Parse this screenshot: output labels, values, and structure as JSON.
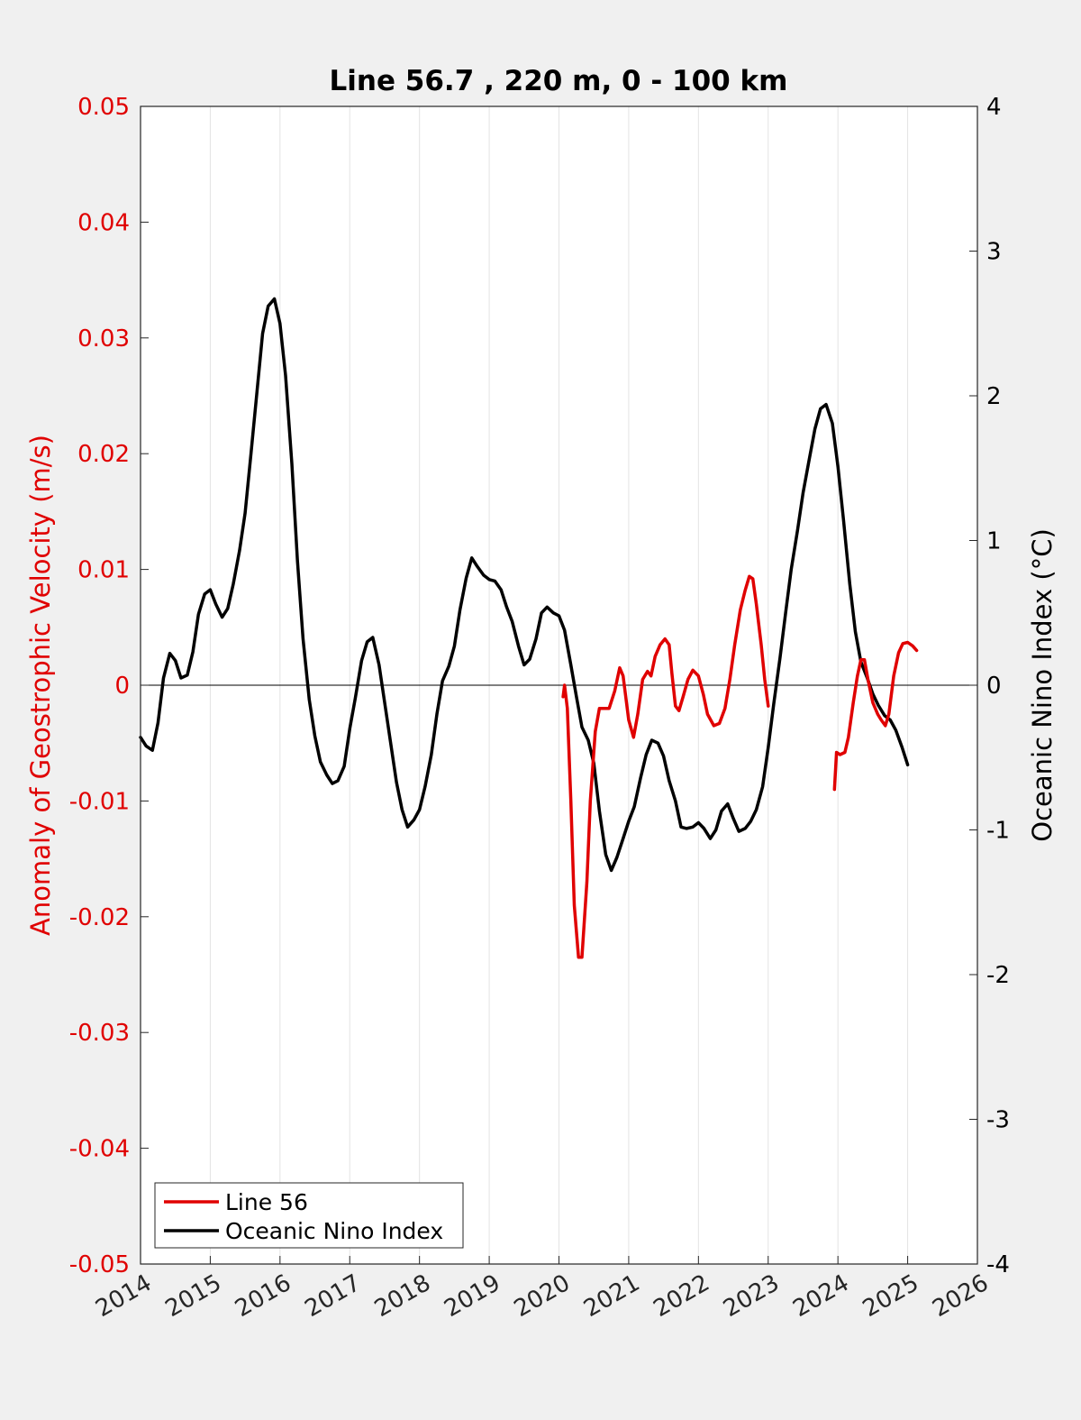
{
  "chart_data": {
    "type": "line",
    "title": "Line 56.7 , 220 m, 0 - 100 km",
    "xlabel": "",
    "ylabel": "Anomaly of Geostrophic Velocity (m/s)",
    "y2label": "Oceanic Nino Index (°C)",
    "xlim": [
      2014,
      2026
    ],
    "ylim": [
      -0.05,
      0.05
    ],
    "y2lim": [
      -4,
      4
    ],
    "x_ticks": [
      "2014",
      "2015",
      "2016",
      "2017",
      "2018",
      "2019",
      "2020",
      "2021",
      "2022",
      "2023",
      "2024",
      "2025",
      "2026"
    ],
    "y_ticks": [
      "0.05",
      "0.04",
      "0.03",
      "0.02",
      "0.01",
      "0",
      "-0.01",
      "-0.02",
      "-0.03",
      "-0.04",
      "-0.05"
    ],
    "y2_ticks": [
      "4",
      "3",
      "2",
      "1",
      "0",
      "-1",
      "-2",
      "-3",
      "-4"
    ],
    "grid": "vertical",
    "legend_position": "bottom-left",
    "colors": {
      "line56": "#e00000",
      "oni": "#000000",
      "left_axis": "#e00000",
      "right_axis": "#000000"
    },
    "series": [
      {
        "name": "Line 56",
        "axis": "left",
        "segments": [
          [
            [
              2020.06,
              -0.001
            ],
            [
              2020.08,
              0
            ],
            [
              2020.12,
              -0.002
            ],
            [
              2020.17,
              -0.01
            ],
            [
              2020.22,
              -0.019
            ],
            [
              2020.28,
              -0.0235
            ],
            [
              2020.33,
              -0.0235
            ],
            [
              2020.4,
              -0.017
            ],
            [
              2020.45,
              -0.01
            ],
            [
              2020.52,
              -0.004
            ],
            [
              2020.58,
              -0.002
            ],
            [
              2020.65,
              -0.002
            ],
            [
              2020.72,
              -0.002
            ],
            [
              2020.8,
              -0.0005
            ],
            [
              2020.87,
              0.0015
            ],
            [
              2020.92,
              0.0008
            ],
            [
              2021.0,
              -0.003
            ],
            [
              2021.07,
              -0.0045
            ],
            [
              2021.13,
              -0.0025
            ],
            [
              2021.2,
              0.0005
            ],
            [
              2021.27,
              0.0012
            ],
            [
              2021.32,
              0.0008
            ],
            [
              2021.38,
              0.0025
            ],
            [
              2021.45,
              0.0035
            ],
            [
              2021.52,
              0.004
            ],
            [
              2021.58,
              0.0035
            ],
            [
              2021.62,
              0.001
            ],
            [
              2021.67,
              -0.0018
            ],
            [
              2021.72,
              -0.0022
            ],
            [
              2021.78,
              -0.001
            ],
            [
              2021.85,
              0.0005
            ],
            [
              2021.92,
              0.0013
            ],
            [
              2022.0,
              0.0008
            ],
            [
              2022.07,
              -0.0008
            ],
            [
              2022.13,
              -0.0025
            ],
            [
              2022.22,
              -0.0035
            ],
            [
              2022.3,
              -0.0033
            ],
            [
              2022.38,
              -0.002
            ],
            [
              2022.45,
              0.0005
            ],
            [
              2022.52,
              0.0035
            ],
            [
              2022.6,
              0.0065
            ],
            [
              2022.67,
              0.0082
            ],
            [
              2022.73,
              0.0094
            ],
            [
              2022.78,
              0.0092
            ],
            [
              2022.83,
              0.007
            ],
            [
              2022.9,
              0.0035
            ],
            [
              2022.95,
              0.0005
            ],
            [
              2023.0,
              -0.0018
            ]
          ],
          [
            [
              2023.95,
              -0.009
            ],
            [
              2023.98,
              -0.0058
            ],
            [
              2024.03,
              -0.006
            ],
            [
              2024.1,
              -0.0058
            ],
            [
              2024.15,
              -0.0045
            ],
            [
              2024.22,
              -0.0015
            ],
            [
              2024.28,
              0.0008
            ],
            [
              2024.33,
              0.0022
            ],
            [
              2024.38,
              0.0022
            ],
            [
              2024.43,
              0.0005
            ],
            [
              2024.5,
              -0.0015
            ],
            [
              2024.57,
              -0.0025
            ],
            [
              2024.62,
              -0.003
            ],
            [
              2024.68,
              -0.0035
            ],
            [
              2024.73,
              -0.0025
            ],
            [
              2024.8,
              0.0008
            ],
            [
              2024.87,
              0.0028
            ],
            [
              2024.93,
              0.0036
            ],
            [
              2025.0,
              0.0037
            ],
            [
              2025.07,
              0.0034
            ],
            [
              2025.13,
              0.003
            ]
          ]
        ]
      },
      {
        "name": "Oceanic Nino Index",
        "axis": "right",
        "x": [
          2014.0,
          2014.08,
          2014.17,
          2014.25,
          2014.33,
          2014.42,
          2014.5,
          2014.58,
          2014.67,
          2014.75,
          2014.83,
          2014.92,
          2015.0,
          2015.08,
          2015.17,
          2015.25,
          2015.33,
          2015.42,
          2015.5,
          2015.58,
          2015.67,
          2015.75,
          2015.83,
          2015.92,
          2016.0,
          2016.08,
          2016.17,
          2016.25,
          2016.33,
          2016.42,
          2016.5,
          2016.58,
          2016.67,
          2016.75,
          2016.83,
          2016.92,
          2017.0,
          2017.08,
          2017.17,
          2017.25,
          2017.33,
          2017.42,
          2017.5,
          2017.58,
          2017.67,
          2017.75,
          2017.83,
          2017.92,
          2018.0,
          2018.08,
          2018.17,
          2018.25,
          2018.33,
          2018.42,
          2018.5,
          2018.58,
          2018.67,
          2018.75,
          2018.83,
          2018.92,
          2019.0,
          2019.08,
          2019.17,
          2019.25,
          2019.33,
          2019.42,
          2019.5,
          2019.58,
          2019.67,
          2019.75,
          2019.83,
          2019.92,
          2020.0,
          2020.08,
          2020.17,
          2020.25,
          2020.33,
          2020.42,
          2020.5,
          2020.58,
          2020.67,
          2020.75,
          2020.83,
          2020.92,
          2021.0,
          2021.08,
          2021.17,
          2021.25,
          2021.33,
          2021.42,
          2021.5,
          2021.58,
          2021.67,
          2021.75,
          2021.83,
          2021.92,
          2022.0,
          2022.08,
          2022.17,
          2022.25,
          2022.33,
          2022.42,
          2022.5,
          2022.58,
          2022.67,
          2022.75,
          2022.83,
          2022.92,
          2023.0,
          2023.08,
          2023.17,
          2023.25,
          2023.33,
          2023.42,
          2023.5,
          2023.58,
          2023.67,
          2023.75,
          2023.83,
          2023.92,
          2024.0,
          2024.08,
          2024.17,
          2024.25,
          2024.33,
          2024.42,
          2024.5,
          2024.58,
          2024.67,
          2024.75,
          2024.83,
          2024.92,
          2025.0
        ],
        "values": [
          -0.36,
          -0.42,
          -0.45,
          -0.26,
          0.05,
          0.22,
          0.17,
          0.05,
          0.07,
          0.23,
          0.49,
          0.63,
          0.66,
          0.56,
          0.47,
          0.53,
          0.7,
          0.93,
          1.19,
          1.58,
          2.03,
          2.43,
          2.62,
          2.67,
          2.5,
          2.14,
          1.53,
          0.86,
          0.32,
          -0.1,
          -0.35,
          -0.53,
          -0.62,
          -0.68,
          -0.66,
          -0.56,
          -0.3,
          -0.09,
          0.17,
          0.3,
          0.33,
          0.14,
          -0.12,
          -0.38,
          -0.67,
          -0.86,
          -0.98,
          -0.93,
          -0.86,
          -0.7,
          -0.48,
          -0.2,
          0.03,
          0.13,
          0.27,
          0.52,
          0.74,
          0.88,
          0.82,
          0.76,
          0.73,
          0.72,
          0.66,
          0.54,
          0.44,
          0.27,
          0.14,
          0.18,
          0.32,
          0.5,
          0.54,
          0.5,
          0.48,
          0.38,
          0.14,
          -0.08,
          -0.29,
          -0.38,
          -0.54,
          -0.87,
          -1.17,
          -1.28,
          -1.19,
          -1.06,
          -0.94,
          -0.84,
          -0.64,
          -0.48,
          -0.38,
          -0.4,
          -0.49,
          -0.66,
          -0.8,
          -0.98,
          -0.99,
          -0.98,
          -0.95,
          -0.99,
          -1.06,
          -1.0,
          -0.87,
          -0.82,
          -0.92,
          -1.01,
          -0.99,
          -0.94,
          -0.86,
          -0.7,
          -0.43,
          -0.13,
          0.19,
          0.5,
          0.8,
          1.07,
          1.33,
          1.54,
          1.77,
          1.91,
          1.94,
          1.81,
          1.51,
          1.14,
          0.7,
          0.37,
          0.16,
          0.05,
          -0.06,
          -0.14,
          -0.21,
          -0.24,
          -0.31,
          -0.43,
          -0.55
        ]
      }
    ]
  }
}
